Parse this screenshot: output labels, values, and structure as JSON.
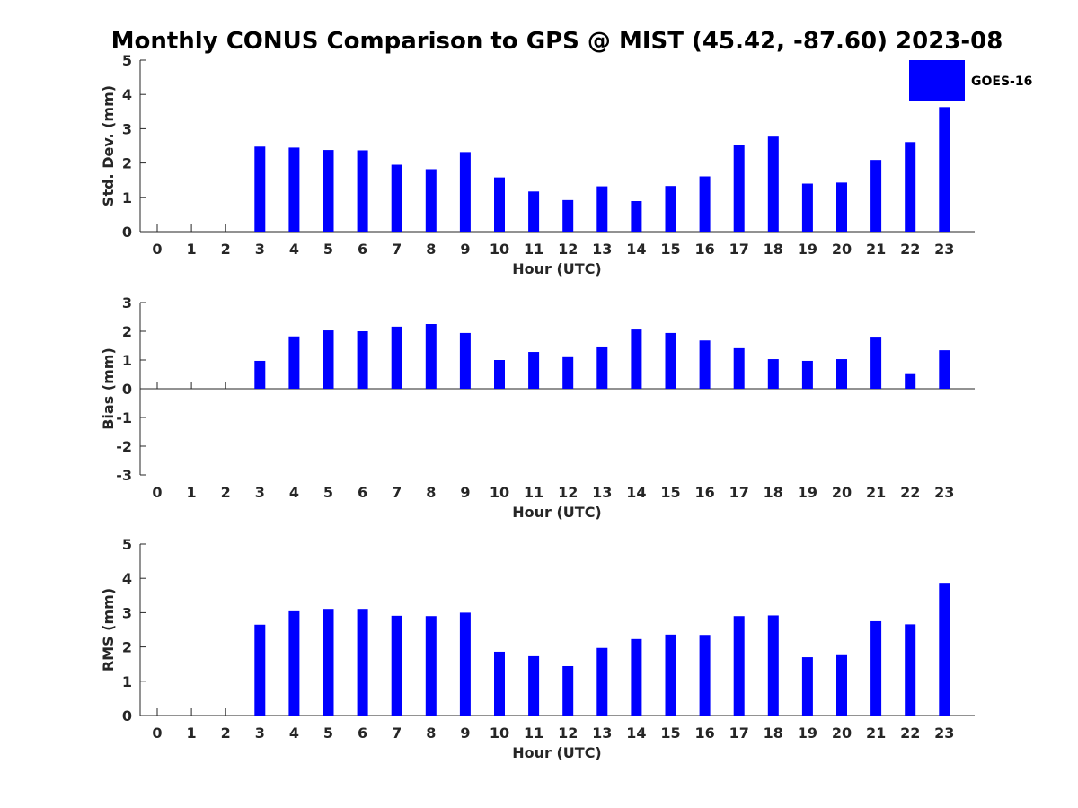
{
  "figure": {
    "title": "Monthly CONUS Comparison to GPS @ MIST (45.42, -87.60) 2023-08",
    "bar_color": "#0000ff",
    "legend": {
      "label": "GOES-16",
      "placement": "top-right"
    }
  },
  "chart_data": [
    {
      "type": "bar",
      "xlabel": "Hour (UTC)",
      "ylabel": "Std. Dev. (mm)",
      "ylim": [
        0,
        5
      ],
      "yticks": [
        "0",
        "1",
        "2",
        "3",
        "4",
        "5"
      ],
      "categories": [
        "0",
        "1",
        "2",
        "3",
        "4",
        "5",
        "6",
        "7",
        "8",
        "9",
        "10",
        "11",
        "12",
        "13",
        "14",
        "15",
        "16",
        "17",
        "18",
        "19",
        "20",
        "21",
        "22",
        "23"
      ],
      "series": [
        {
          "name": "GOES-16",
          "values": [
            null,
            null,
            null,
            2.48,
            2.45,
            2.38,
            2.37,
            1.95,
            1.82,
            2.32,
            1.58,
            1.17,
            0.92,
            1.32,
            0.89,
            1.33,
            1.61,
            2.53,
            2.77,
            1.4,
            1.43,
            2.09,
            2.61,
            3.63
          ]
        }
      ]
    },
    {
      "type": "bar",
      "xlabel": "Hour (UTC)",
      "ylabel": "Bias (mm)",
      "ylim": [
        -3,
        3
      ],
      "yticks": [
        "-3",
        "-2",
        "-1",
        "0",
        "1",
        "2",
        "3"
      ],
      "categories": [
        "0",
        "1",
        "2",
        "3",
        "4",
        "5",
        "6",
        "7",
        "8",
        "9",
        "10",
        "11",
        "12",
        "13",
        "14",
        "15",
        "16",
        "17",
        "18",
        "19",
        "20",
        "21",
        "22",
        "23"
      ],
      "series": [
        {
          "name": "GOES-16",
          "values": [
            null,
            null,
            null,
            0.97,
            1.82,
            2.03,
            2.0,
            2.16,
            2.25,
            1.94,
            1.0,
            1.28,
            1.1,
            1.47,
            2.06,
            1.94,
            1.68,
            1.41,
            1.03,
            0.97,
            1.03,
            1.81,
            0.51,
            1.34
          ]
        }
      ]
    },
    {
      "type": "bar",
      "xlabel": "Hour (UTC)",
      "ylabel": "RMS (mm)",
      "ylim": [
        0,
        5
      ],
      "yticks": [
        "0",
        "1",
        "2",
        "3",
        "4",
        "5"
      ],
      "categories": [
        "0",
        "1",
        "2",
        "3",
        "4",
        "5",
        "6",
        "7",
        "8",
        "9",
        "10",
        "11",
        "12",
        "13",
        "14",
        "15",
        "16",
        "17",
        "18",
        "19",
        "20",
        "21",
        "22",
        "23"
      ],
      "series": [
        {
          "name": "GOES-16",
          "values": [
            null,
            null,
            null,
            2.65,
            3.04,
            3.11,
            3.11,
            2.91,
            2.9,
            3.0,
            1.86,
            1.73,
            1.44,
            1.97,
            2.23,
            2.36,
            2.35,
            2.9,
            2.92,
            1.7,
            1.76,
            2.75,
            2.66,
            3.87
          ]
        }
      ]
    }
  ]
}
